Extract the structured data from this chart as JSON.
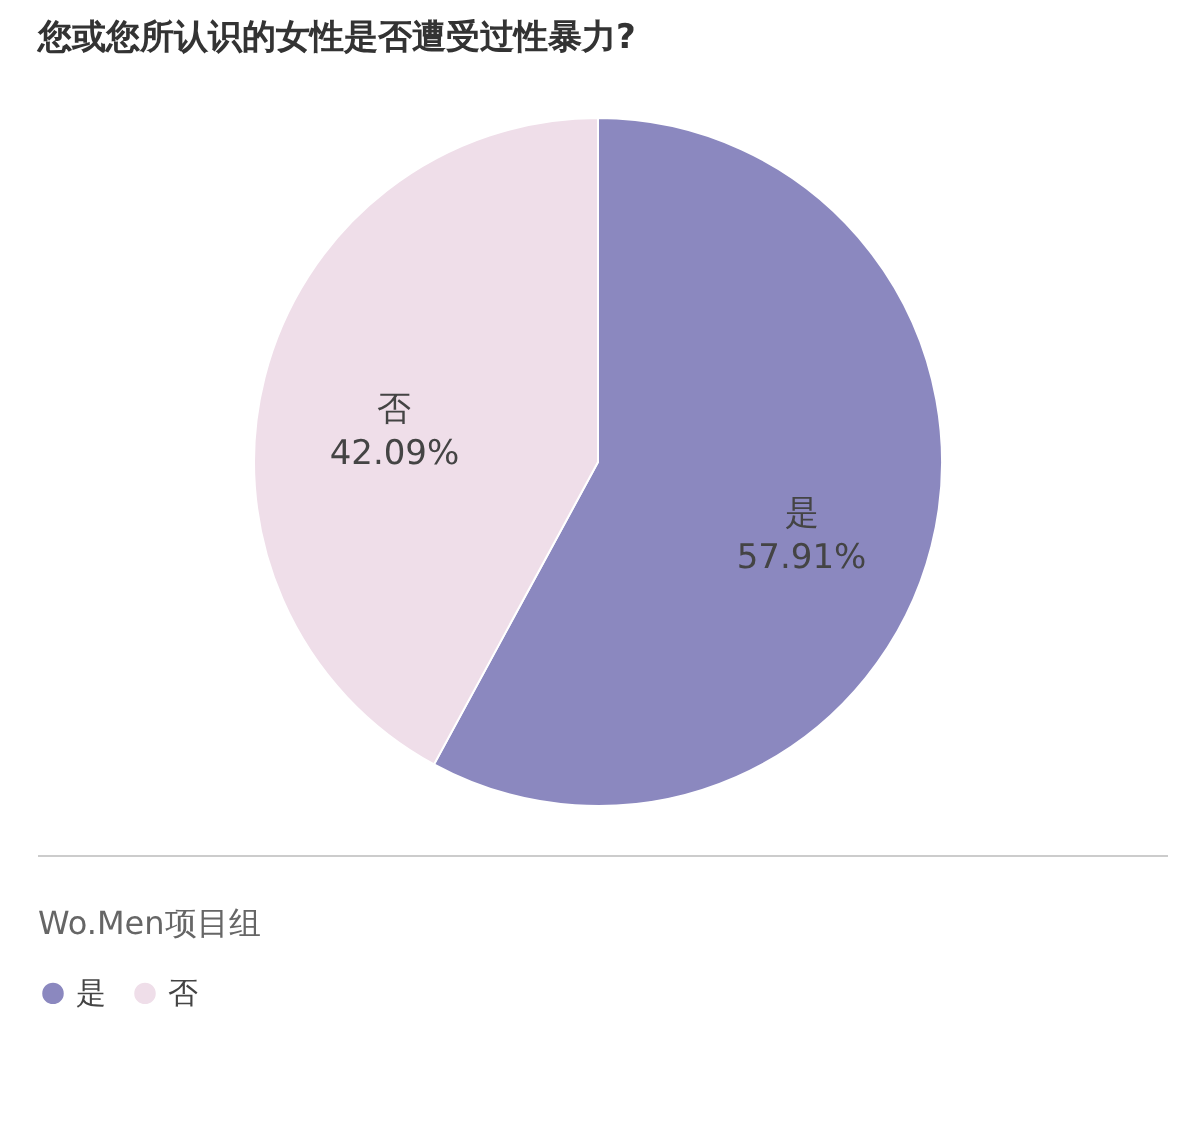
{
  "chart_data": {
    "type": "pie",
    "title": "您或您所认识的女性是否遭受过性暴力?",
    "categories": [
      "是",
      "否"
    ],
    "values": [
      57.91,
      42.09
    ],
    "value_labels": [
      "57.91%",
      "42.09%"
    ],
    "colors": [
      "#8b88bf",
      "#efdee9"
    ],
    "legend": "bottom",
    "annotations": [
      "Wo.Men项目组"
    ]
  }
}
